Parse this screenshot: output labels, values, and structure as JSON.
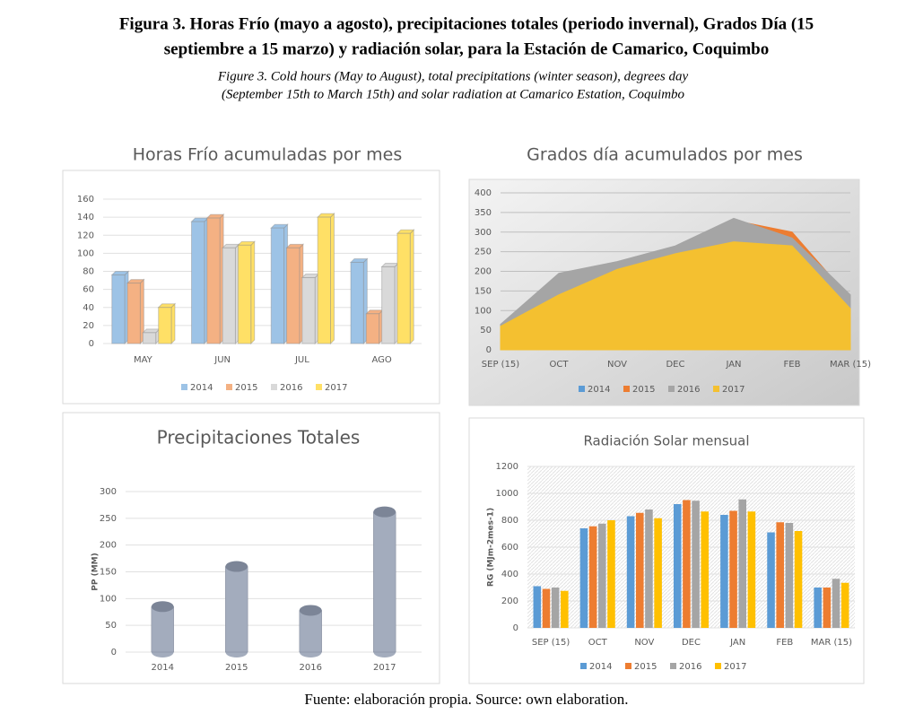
{
  "header": {
    "title": [
      "Figura 3. Horas Frío (mayo a agosto), precipitaciones totales (periodo invernal), Grados Día (15",
      "septiembre a 15 marzo) y radiación solar, para la Estación de Camarico, Coquimbo"
    ],
    "subtitle": [
      "Figure 3. Cold hours (May to August), total precipitations (winter season), degrees day",
      "(September 15th to March 15th) and solar radiation at Camarico Estation, Coquimbo"
    ]
  },
  "footer": "Fuente: elaboración propia. Source: own elaboration.",
  "chart_data": [
    {
      "type": "bar",
      "three_d": true,
      "title": "Horas Frío acumuladas por mes",
      "categories": [
        "MAY",
        "JUN",
        "JUL",
        "AGO"
      ],
      "series": [
        {
          "name": "2014",
          "color": "#9dc3e6",
          "values": [
            76,
            135,
            128,
            90
          ]
        },
        {
          "name": "2015",
          "color": "#f4b183",
          "values": [
            67,
            139,
            106,
            33
          ]
        },
        {
          "name": "2016",
          "color": "#d9d9d9",
          "values": [
            12,
            106,
            73,
            85
          ]
        },
        {
          "name": "2017",
          "color": "#ffe066",
          "values": [
            40,
            109,
            140,
            122
          ]
        }
      ],
      "ylim": [
        0,
        160
      ],
      "yticks": [
        0,
        20,
        40,
        60,
        80,
        100,
        120,
        140,
        160
      ],
      "grid": true,
      "legend": "bottom"
    },
    {
      "type": "area",
      "title": "Grados día acumulados por mes",
      "categories": [
        "SEP (15)",
        "OCT",
        "NOV",
        "DEC",
        "JAN",
        "FEB",
        "MAR (15)"
      ],
      "series": [
        {
          "name": "2014",
          "color": "#5b9bd5",
          "values": [
            60,
            180,
            215,
            255,
            325,
            290,
            125
          ]
        },
        {
          "name": "2015",
          "color": "#ed7d31",
          "values": [
            62,
            170,
            220,
            260,
            330,
            300,
            130
          ]
        },
        {
          "name": "2016",
          "color": "#a5a5a5",
          "values": [
            65,
            195,
            225,
            265,
            335,
            285,
            140
          ]
        },
        {
          "name": "2017",
          "color": "#f4c030",
          "values": [
            60,
            140,
            205,
            245,
            275,
            265,
            105
          ]
        }
      ],
      "ylim": [
        0,
        400
      ],
      "yticks": [
        0,
        50,
        100,
        150,
        200,
        250,
        300,
        350,
        400
      ],
      "grid": true,
      "legend": "bottom"
    },
    {
      "type": "bar",
      "shape": "cylinder",
      "title": "Precipitaciones Totales",
      "y_label": "PP (MM)",
      "categories": [
        "2014",
        "2015",
        "2016",
        "2017"
      ],
      "values": [
        85,
        160,
        78,
        262
      ],
      "color": "#a3acbd",
      "ylim": [
        0,
        300
      ],
      "yticks": [
        0,
        50,
        100,
        150,
        200,
        250,
        300
      ],
      "grid": true
    },
    {
      "type": "bar",
      "title": "Radiación Solar mensual",
      "y_label": "RG (MJm-2mes-1)",
      "categories": [
        "SEP (15)",
        "OCT",
        "NOV",
        "DEC",
        "JAN",
        "FEB",
        "MAR (15)"
      ],
      "series": [
        {
          "name": "2014",
          "color": "#5b9bd5",
          "values": [
            310,
            740,
            830,
            920,
            840,
            710,
            300
          ]
        },
        {
          "name": "2015",
          "color": "#ed7d31",
          "values": [
            290,
            755,
            855,
            950,
            870,
            785,
            300
          ]
        },
        {
          "name": "2016",
          "color": "#a5a5a5",
          "values": [
            300,
            775,
            880,
            945,
            955,
            780,
            365
          ]
        },
        {
          "name": "2017",
          "color": "#ffc000",
          "values": [
            275,
            800,
            815,
            865,
            865,
            720,
            335
          ]
        }
      ],
      "ylim": [
        0,
        1200
      ],
      "yticks": [
        0,
        200,
        400,
        600,
        800,
        1000,
        1200
      ],
      "grid": true,
      "legend": "bottom"
    }
  ]
}
